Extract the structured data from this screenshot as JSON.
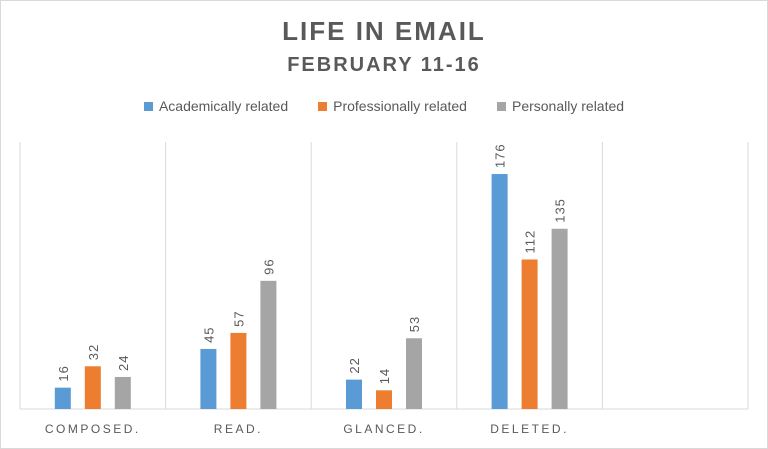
{
  "chart_data": {
    "type": "bar",
    "title": "LIFE IN EMAIL",
    "subtitle": "FEBRUARY  11-16",
    "categories": [
      "COMPOSED.",
      "READ.",
      "GLANCED.",
      "DELETED."
    ],
    "series": [
      {
        "name": "Academically related",
        "color": "#5b9bd5",
        "values": [
          16,
          45,
          22,
          176
        ]
      },
      {
        "name": "Professionally related",
        "color": "#ed7d31",
        "values": [
          32,
          57,
          14,
          112
        ]
      },
      {
        "name": "Personally related",
        "color": "#a5a5a5",
        "values": [
          24,
          96,
          53,
          135
        ]
      }
    ],
    "ylim": [
      0,
      200
    ],
    "grid": "vertical category separators",
    "legend_position": "top"
  }
}
